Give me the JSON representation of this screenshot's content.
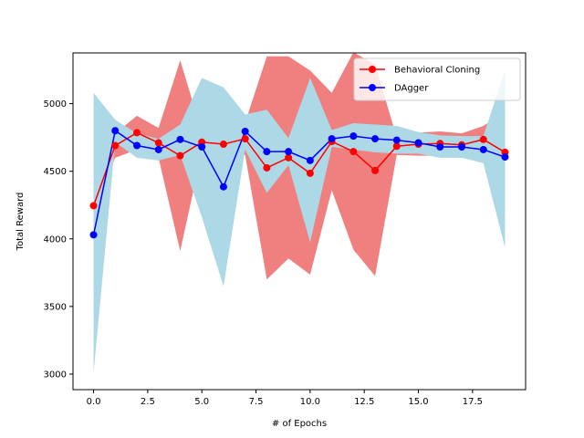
{
  "chart_data": {
    "type": "line",
    "xlabel": "# of Epochs",
    "ylabel": "Total Reward",
    "xlim": [
      -0.95,
      19.95
    ],
    "ylim": [
      2885,
      5375
    ],
    "xticks": [
      0.0,
      2.5,
      5.0,
      7.5,
      10.0,
      12.5,
      15.0,
      17.5
    ],
    "xtick_labels": [
      "0.0",
      "2.5",
      "5.0",
      "7.5",
      "10.0",
      "12.5",
      "15.0",
      "17.5"
    ],
    "yticks": [
      3000,
      3500,
      4000,
      4500,
      5000
    ],
    "ytick_labels": [
      "3000",
      "3500",
      "4000",
      "4500",
      "5000"
    ],
    "grid": false,
    "legend_position": "top-right",
    "x": [
      0,
      1,
      2,
      3,
      4,
      5,
      6,
      7,
      8,
      9,
      10,
      11,
      12,
      13,
      14,
      15,
      16,
      17,
      18,
      19
    ],
    "series": [
      {
        "name": "Behavioral Cloning",
        "color": "#ff0000",
        "band_color": "#f08080",
        "values": [
          4245,
          4690,
          4785,
          4710,
          4615,
          4715,
          4700,
          4740,
          4525,
          4600,
          4485,
          4720,
          4645,
          4505,
          4685,
          4700,
          4705,
          4695,
          4735,
          4640
        ],
        "lower": [
          4245,
          4600,
          4660,
          4600,
          3910,
          4640,
          4620,
          4620,
          3700,
          3855,
          3735,
          4360,
          3920,
          3725,
          4620,
          4615,
          4615,
          4610,
          4635,
          4345
        ],
        "upper": [
          4245,
          4780,
          4910,
          4820,
          5320,
          4790,
          4780,
          4860,
          5350,
          5350,
          5245,
          5080,
          5380,
          5290,
          4750,
          4785,
          4795,
          4780,
          4835,
          4940
        ]
      },
      {
        "name": "DAgger",
        "color": "#0000ff",
        "band_color": "#add8e6",
        "values": [
          4030,
          4800,
          4690,
          4660,
          4735,
          4680,
          4385,
          4795,
          4645,
          4645,
          4580,
          4740,
          4760,
          4740,
          4730,
          4710,
          4680,
          4680,
          4660,
          4605
        ],
        "lower": [
          3010,
          4715,
          4600,
          4580,
          4620,
          4160,
          3650,
          4660,
          4340,
          4545,
          3975,
          4680,
          4660,
          4640,
          4630,
          4630,
          4600,
          4600,
          4560,
          3935
        ],
        "upper": [
          5080,
          4880,
          4780,
          4740,
          4845,
          5190,
          5120,
          4920,
          4955,
          4745,
          5190,
          4805,
          4855,
          4845,
          4835,
          4790,
          4765,
          4760,
          4760,
          5250
        ]
      }
    ]
  }
}
